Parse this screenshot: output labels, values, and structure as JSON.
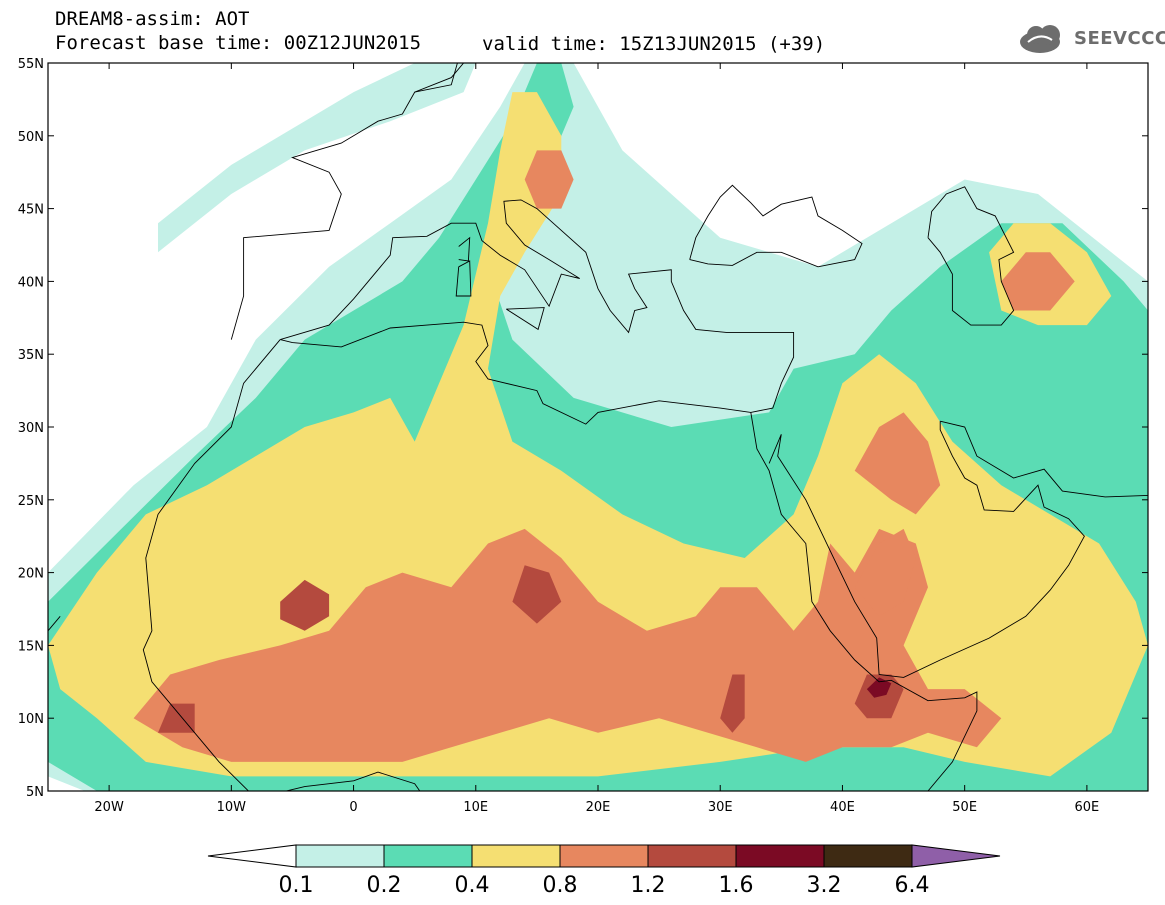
{
  "header": {
    "title_line1": "DREAM8-assim: AOT",
    "title_line2": "Forecast base time: 00Z12JUN2015",
    "valid_time": "valid time: 15Z13JUN2015 (+39)",
    "logo_text": "SEEVCCC"
  },
  "map": {
    "lon_range": [
      -25,
      65
    ],
    "lat_range": [
      5,
      55
    ],
    "lat_ticks": [
      {
        "v": 55,
        "label": "55N"
      },
      {
        "v": 50,
        "label": "50N"
      },
      {
        "v": 45,
        "label": "45N"
      },
      {
        "v": 40,
        "label": "40N"
      },
      {
        "v": 35,
        "label": "35N"
      },
      {
        "v": 30,
        "label": "30N"
      },
      {
        "v": 25,
        "label": "25N"
      },
      {
        "v": 20,
        "label": "20N"
      },
      {
        "v": 15,
        "label": "15N"
      },
      {
        "v": 10,
        "label": "10N"
      },
      {
        "v": 5,
        "label": "5N"
      }
    ],
    "lon_ticks": [
      {
        "v": -20,
        "label": "20W"
      },
      {
        "v": -10,
        "label": "10W"
      },
      {
        "v": 0,
        "label": "0"
      },
      {
        "v": 10,
        "label": "10E"
      },
      {
        "v": 20,
        "label": "20E"
      },
      {
        "v": 30,
        "label": "30E"
      },
      {
        "v": 40,
        "label": "40E"
      },
      {
        "v": 50,
        "label": "50E"
      },
      {
        "v": 60,
        "label": "60E"
      }
    ],
    "aot_regions": [
      {
        "level": 0.1,
        "points": [
          [
            -25,
            20
          ],
          [
            -18,
            26
          ],
          [
            -12,
            30
          ],
          [
            -8,
            36
          ],
          [
            -2,
            41
          ],
          [
            3,
            44
          ],
          [
            8,
            47
          ],
          [
            12,
            52
          ],
          [
            14,
            55
          ],
          [
            18,
            55
          ],
          [
            20,
            52
          ],
          [
            22,
            49
          ],
          [
            30,
            43
          ],
          [
            38,
            41
          ],
          [
            44,
            44
          ],
          [
            50,
            47
          ],
          [
            56,
            46
          ],
          [
            62,
            42
          ],
          [
            65,
            40
          ],
          [
            65,
            5
          ],
          [
            -22,
            5
          ],
          [
            -25,
            6
          ]
        ]
      },
      {
        "level": 0.1,
        "points": [
          [
            -16,
            44
          ],
          [
            -10,
            48
          ],
          [
            -4,
            51
          ],
          [
            0,
            53
          ],
          [
            5,
            55
          ],
          [
            10,
            55
          ],
          [
            9,
            53
          ],
          [
            3,
            51
          ],
          [
            -4,
            49
          ],
          [
            -10,
            46
          ],
          [
            -16,
            42
          ]
        ]
      },
      {
        "level": 0.2,
        "points": [
          [
            -25,
            18
          ],
          [
            -19,
            23
          ],
          [
            -13,
            28
          ],
          [
            -8,
            32
          ],
          [
            -4,
            36
          ],
          [
            0,
            38
          ],
          [
            4,
            40
          ],
          [
            7,
            43
          ],
          [
            10,
            47
          ],
          [
            13,
            51
          ],
          [
            15,
            55
          ],
          [
            17,
            55
          ],
          [
            18,
            52
          ],
          [
            16,
            48
          ],
          [
            12,
            45
          ],
          [
            11,
            41
          ],
          [
            13,
            36
          ],
          [
            18,
            32
          ],
          [
            26,
            30
          ],
          [
            34,
            31
          ],
          [
            36,
            34
          ],
          [
            41,
            35
          ],
          [
            44,
            38
          ],
          [
            48,
            41
          ],
          [
            53,
            44
          ],
          [
            58,
            44
          ],
          [
            63,
            40
          ],
          [
            65,
            38
          ],
          [
            65,
            5
          ],
          [
            -21,
            5
          ],
          [
            -25,
            7
          ]
        ]
      },
      {
        "level": 0.4,
        "points": [
          [
            -25,
            15
          ],
          [
            -21,
            20
          ],
          [
            -17,
            24
          ],
          [
            -12,
            26
          ],
          [
            -8,
            28
          ],
          [
            -4,
            30
          ],
          [
            0,
            31
          ],
          [
            3,
            32
          ],
          [
            5,
            29
          ],
          [
            7,
            33
          ],
          [
            9,
            37
          ],
          [
            11,
            44
          ],
          [
            12,
            49
          ],
          [
            13,
            53
          ],
          [
            15,
            53
          ],
          [
            17,
            50
          ],
          [
            17,
            46
          ],
          [
            14,
            42
          ],
          [
            12,
            39
          ],
          [
            11,
            34
          ],
          [
            13,
            29
          ],
          [
            17,
            27
          ],
          [
            22,
            24
          ],
          [
            27,
            22
          ],
          [
            32,
            21
          ],
          [
            36,
            24
          ],
          [
            38,
            28
          ],
          [
            40,
            33
          ],
          [
            43,
            35
          ],
          [
            46,
            33
          ],
          [
            49,
            29
          ],
          [
            53,
            26
          ],
          [
            57,
            24
          ],
          [
            61,
            22
          ],
          [
            64,
            18
          ],
          [
            65,
            15
          ],
          [
            62,
            9
          ],
          [
            57,
            6
          ],
          [
            50,
            7
          ],
          [
            45,
            8
          ],
          [
            38,
            8
          ],
          [
            30,
            7
          ],
          [
            20,
            6
          ],
          [
            10,
            6
          ],
          [
            0,
            6
          ],
          [
            -10,
            6
          ],
          [
            -17,
            7
          ],
          [
            -21,
            10
          ],
          [
            -24,
            12
          ]
        ]
      },
      {
        "level": 0.4,
        "points": [
          [
            52,
            42
          ],
          [
            54,
            44
          ],
          [
            57,
            44
          ],
          [
            60,
            42
          ],
          [
            62,
            39
          ],
          [
            60,
            37
          ],
          [
            56,
            37
          ],
          [
            53,
            38
          ]
        ]
      },
      {
        "level": 0.8,
        "points": [
          [
            -18,
            10
          ],
          [
            -15,
            13
          ],
          [
            -11,
            14
          ],
          [
            -6,
            15
          ],
          [
            -2,
            16
          ],
          [
            1,
            19
          ],
          [
            4,
            20
          ],
          [
            8,
            19
          ],
          [
            11,
            22
          ],
          [
            14,
            23
          ],
          [
            17,
            21
          ],
          [
            20,
            18
          ],
          [
            24,
            16
          ],
          [
            28,
            17
          ],
          [
            30,
            19
          ],
          [
            33,
            19
          ],
          [
            36,
            16
          ],
          [
            38,
            18
          ],
          [
            39,
            22
          ],
          [
            41,
            20
          ],
          [
            43,
            23
          ],
          [
            46,
            22
          ],
          [
            47,
            19
          ],
          [
            45,
            15
          ],
          [
            47,
            12
          ],
          [
            50,
            12
          ],
          [
            53,
            10
          ],
          [
            51,
            8
          ],
          [
            47,
            9
          ],
          [
            44,
            8
          ],
          [
            40,
            8
          ],
          [
            37,
            7
          ],
          [
            33,
            8
          ],
          [
            29,
            9
          ],
          [
            25,
            10
          ],
          [
            20,
            9
          ],
          [
            16,
            10
          ],
          [
            12,
            9
          ],
          [
            8,
            8
          ],
          [
            4,
            7
          ],
          [
            0,
            7
          ],
          [
            -5,
            7
          ],
          [
            -10,
            7
          ],
          [
            -14,
            8
          ]
        ]
      },
      {
        "level": 0.8,
        "points": [
          [
            41,
            27
          ],
          [
            43,
            30
          ],
          [
            45,
            31
          ],
          [
            47,
            29
          ],
          [
            48,
            26
          ],
          [
            46,
            24
          ],
          [
            44,
            25
          ]
        ]
      },
      {
        "level": 0.8,
        "points": [
          [
            41,
            19
          ],
          [
            43,
            22
          ],
          [
            45,
            23
          ],
          [
            46,
            21
          ],
          [
            45,
            18
          ],
          [
            43,
            17
          ]
        ]
      },
      {
        "level": 0.8,
        "points": [
          [
            53,
            40
          ],
          [
            55,
            42
          ],
          [
            57,
            42
          ],
          [
            59,
            40
          ],
          [
            57,
            38
          ],
          [
            54,
            38
          ]
        ]
      },
      {
        "level": 0.8,
        "points": [
          [
            14,
            47
          ],
          [
            15,
            49
          ],
          [
            17,
            49
          ],
          [
            18,
            47
          ],
          [
            17,
            45
          ],
          [
            15,
            45
          ]
        ]
      },
      {
        "level": 1.2,
        "points": [
          [
            -6,
            18
          ],
          [
            -4,
            19.5
          ],
          [
            -2,
            18.5
          ],
          [
            -2,
            17
          ],
          [
            -4,
            16
          ],
          [
            -6,
            16.8
          ]
        ]
      },
      {
        "level": 1.2,
        "points": [
          [
            13,
            18
          ],
          [
            14,
            20.5
          ],
          [
            16,
            20
          ],
          [
            17,
            18
          ],
          [
            15,
            16.5
          ]
        ]
      },
      {
        "level": 1.2,
        "points": [
          [
            30,
            10
          ],
          [
            31,
            13
          ],
          [
            32,
            13
          ],
          [
            32,
            10
          ],
          [
            31,
            9
          ]
        ]
      },
      {
        "level": 1.2,
        "points": [
          [
            41,
            11
          ],
          [
            42,
            13
          ],
          [
            44,
            13
          ],
          [
            45,
            12
          ],
          [
            44,
            10
          ],
          [
            42,
            10
          ]
        ]
      },
      {
        "level": 1.2,
        "points": [
          [
            -16,
            9
          ],
          [
            -15,
            11
          ],
          [
            -13,
            11
          ],
          [
            -13,
            9
          ]
        ]
      },
      {
        "level": 1.6,
        "points": [
          [
            42,
            12
          ],
          [
            43,
            12.8
          ],
          [
            44,
            12.4
          ],
          [
            43.6,
            11.6
          ],
          [
            42.6,
            11.4
          ]
        ]
      }
    ]
  },
  "colorbar": {
    "labels": [
      "0.1",
      "0.2",
      "0.4",
      "0.8",
      "1.2",
      "1.6",
      "3.2",
      "6.4"
    ],
    "colors": [
      "#ffffff",
      "#c4f0e7",
      "#5bdcb4",
      "#f5df72",
      "#e7875f",
      "#b44a3e",
      "#7b0a24",
      "#3e2a13",
      "#8f5fa8"
    ]
  },
  "aot_colors": {
    "0.1": "#c4f0e7",
    "0.2": "#5bdcb4",
    "0.4": "#f5df72",
    "0.8": "#e7875f",
    "1.2": "#b44a3e",
    "1.6": "#7b0a24"
  }
}
